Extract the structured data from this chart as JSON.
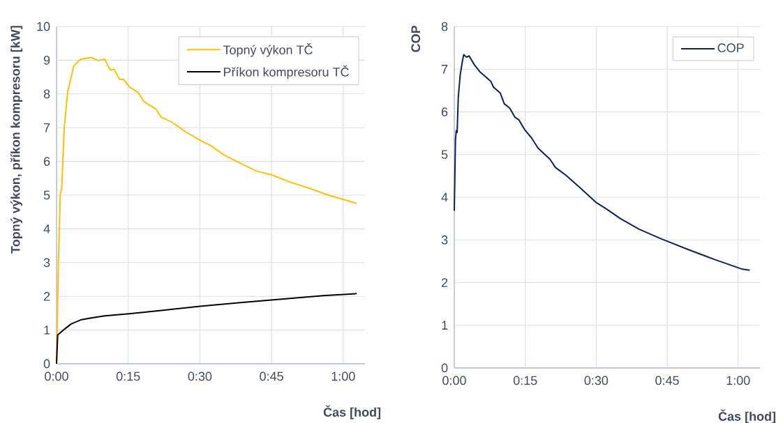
{
  "chart_data": [
    {
      "type": "line",
      "xlabel": "Čas [hod]",
      "ylabel": "Topný výkon, příkon kompresoru [kW]",
      "xlim": [
        0,
        1.076
      ],
      "ylim": [
        0,
        10
      ],
      "xticks": [
        {
          "value": 0,
          "label": "0:00"
        },
        {
          "value": 0.25,
          "label": "0:15"
        },
        {
          "value": 0.5,
          "label": "0:30"
        },
        {
          "value": 0.75,
          "label": "0:45"
        },
        {
          "value": 1,
          "label": "1:00"
        }
      ],
      "yticks": [
        0,
        1,
        2,
        3,
        4,
        5,
        6,
        7,
        8,
        9,
        10
      ],
      "grid": true,
      "legend": "top right",
      "series": [
        {
          "name": "Topný výkon TČ",
          "color": "#ffc000",
          "x": [
            0,
            0.006,
            0.013,
            0.018,
            0.027,
            0.039,
            0.06,
            0.084,
            0.121,
            0.145,
            0.168,
            0.187,
            0.201,
            0.22,
            0.234,
            0.253,
            0.286,
            0.305,
            0.347,
            0.365,
            0.403,
            0.45,
            0.507,
            0.54,
            0.582,
            0.629,
            0.695,
            0.751,
            0.817,
            0.883,
            0.948,
            1.014,
            1.047
          ],
          "values": [
            0,
            2.8,
            5.0,
            5.2,
            7.0,
            8.07,
            8.83,
            9.03,
            9.08,
            8.99,
            9.03,
            8.71,
            8.73,
            8.43,
            8.43,
            8.22,
            8.03,
            7.77,
            7.55,
            7.31,
            7.16,
            6.88,
            6.6,
            6.46,
            6.2,
            6.0,
            5.72,
            5.6,
            5.38,
            5.2,
            5.0,
            4.84,
            4.75
          ]
        },
        {
          "name": "Příkon kompresoru TČ",
          "color": "#000000",
          "x": [
            0,
            0.004,
            0.027,
            0.051,
            0.084,
            0.121,
            0.168,
            0.253,
            0.366,
            0.507,
            0.648,
            0.789,
            0.93,
            1.047
          ],
          "values": [
            0,
            0.85,
            1.02,
            1.18,
            1.3,
            1.36,
            1.42,
            1.48,
            1.58,
            1.71,
            1.82,
            1.92,
            2.02,
            2.08
          ]
        }
      ]
    },
    {
      "type": "line",
      "xlabel": "Čas [hod]",
      "ylabel": "COP",
      "xlim": [
        0,
        1.077
      ],
      "ylim": [
        0,
        8
      ],
      "xticks": [
        {
          "value": 0,
          "label": "0:00"
        },
        {
          "value": 0.25,
          "label": "0:15"
        },
        {
          "value": 0.5,
          "label": "0:30"
        },
        {
          "value": 0.75,
          "label": "0:45"
        },
        {
          "value": 1,
          "label": "1:00"
        }
      ],
      "yticks": [
        0,
        1,
        2,
        3,
        4,
        5,
        6,
        7,
        8
      ],
      "grid": true,
      "legend": "top right",
      "series": [
        {
          "name": "COP",
          "color": "#0e1f5b",
          "x": [
            0,
            0.004,
            0.007,
            0.01,
            0.014,
            0.021,
            0.029,
            0.033,
            0.043,
            0.052,
            0.071,
            0.09,
            0.128,
            0.138,
            0.162,
            0.176,
            0.195,
            0.214,
            0.228,
            0.247,
            0.271,
            0.295,
            0.337,
            0.356,
            0.394,
            0.442,
            0.499,
            0.537,
            0.585,
            0.651,
            0.727,
            0.822,
            0.917,
            1.012,
            1.041
          ],
          "values": [
            3.68,
            5.33,
            5.56,
            5.52,
            6.34,
            6.88,
            7.2,
            7.34,
            7.28,
            7.31,
            7.1,
            6.94,
            6.72,
            6.58,
            6.44,
            6.19,
            6.09,
            5.87,
            5.81,
            5.59,
            5.4,
            5.15,
            4.89,
            4.7,
            4.51,
            4.23,
            3.88,
            3.72,
            3.5,
            3.25,
            3.03,
            2.78,
            2.54,
            2.32,
            2.29
          ]
        }
      ]
    }
  ]
}
